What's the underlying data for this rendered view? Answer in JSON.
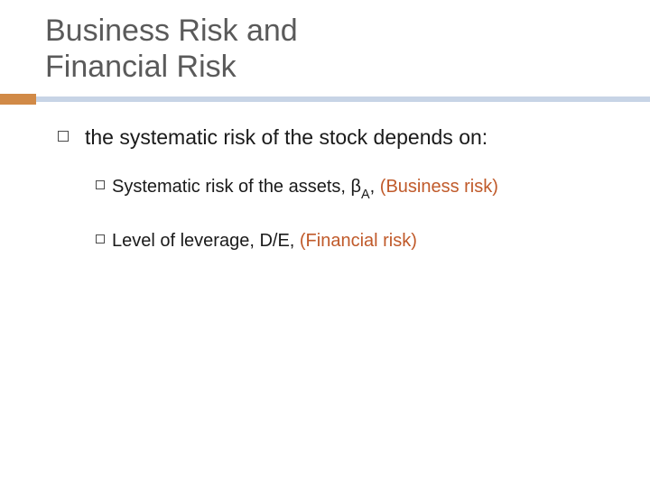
{
  "colors": {
    "title": "#5a5a5a",
    "body": "#1a1a1a",
    "highlight": "#c05a2a",
    "orange_bar": "#d18a47",
    "blue_bar": "#c7d4e6",
    "background": "#ffffff"
  },
  "typography": {
    "title_fontsize": 34,
    "lvl1_fontsize": 23,
    "lvl2_fontsize": 20,
    "font_family": "Arial"
  },
  "title": {
    "line1": "Business Risk and",
    "line2": "Financial Risk"
  },
  "content": {
    "lvl1_text": "the systematic risk of the stock depends on:",
    "items": [
      {
        "pre": "Systematic risk of the assets, ",
        "beta": "β",
        "beta_sub": "A",
        "post_comma": ", ",
        "highlight": "(Business risk)"
      },
      {
        "pre": "Level of leverage, D/E, ",
        "highlight": "(Financial risk)"
      }
    ]
  }
}
